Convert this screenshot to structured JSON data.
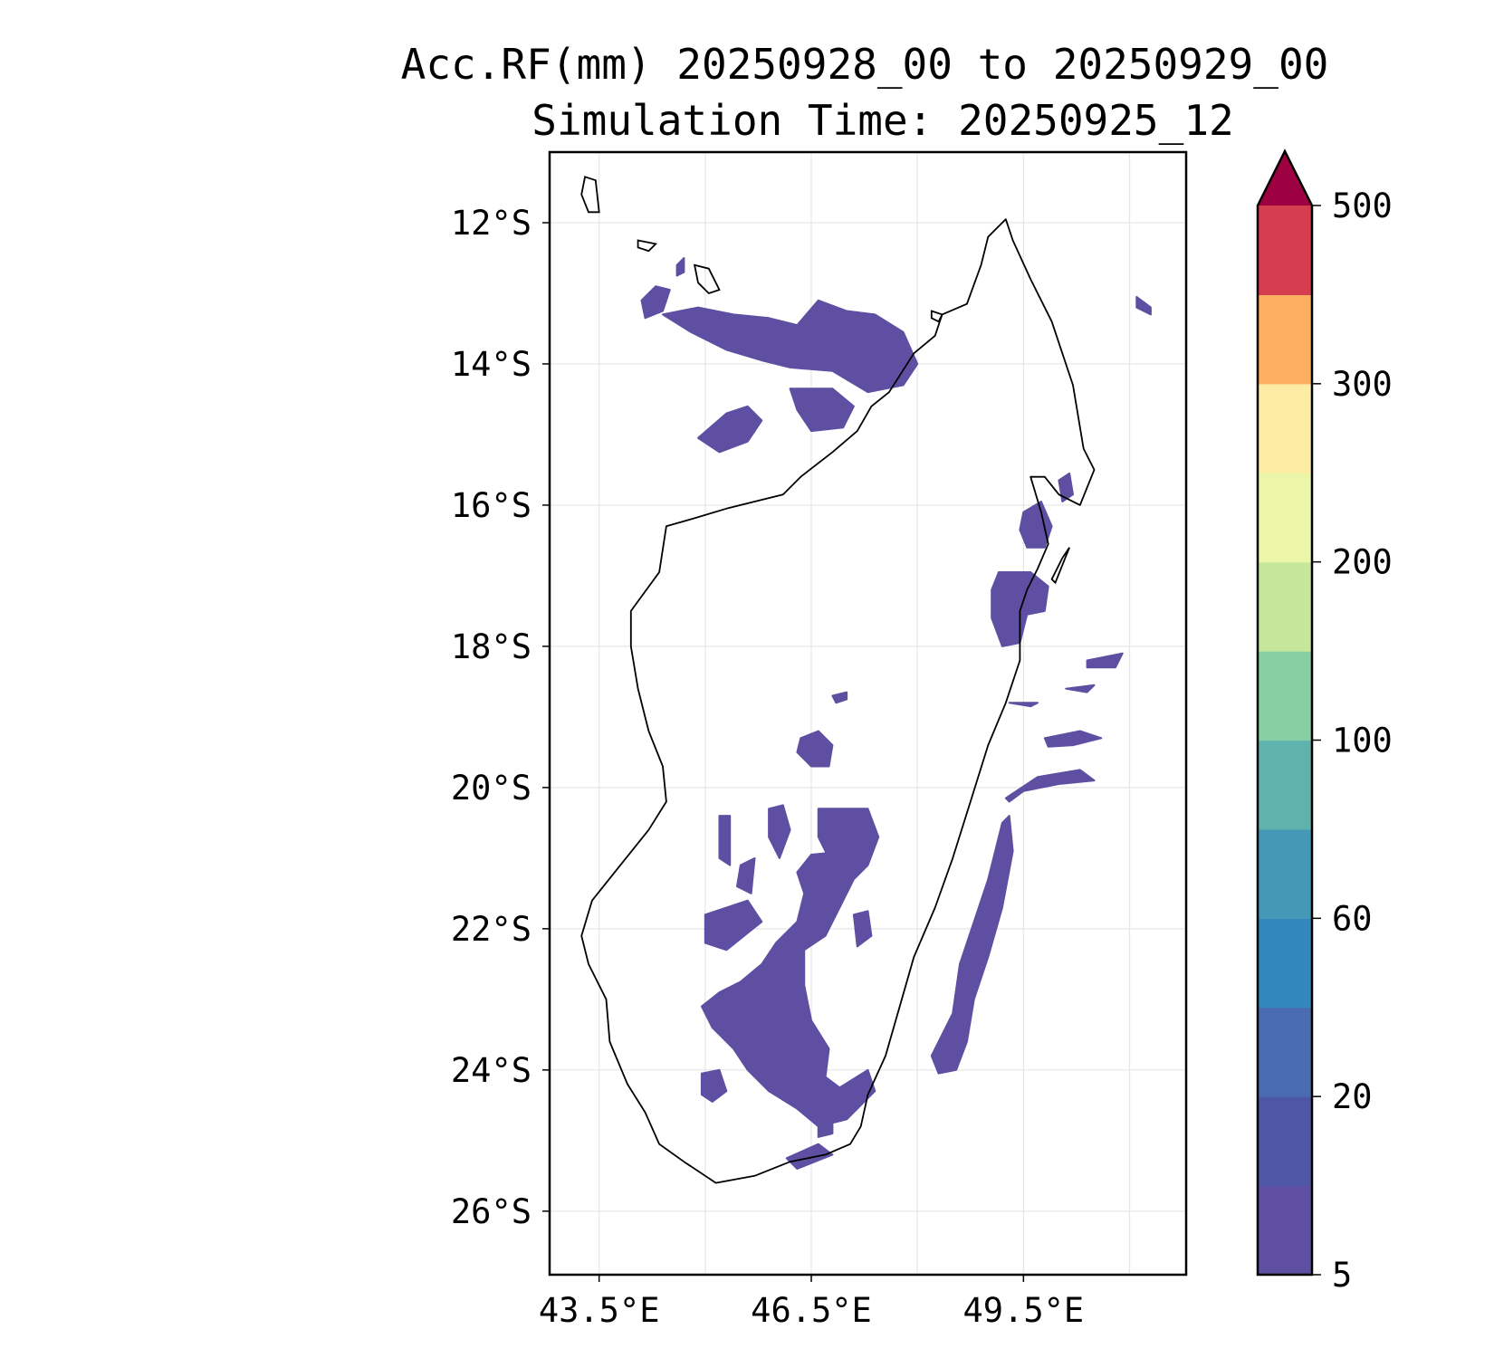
{
  "title": {
    "line1": "Acc.RF(mm) 20250928_00 to 20250929_00",
    "line2": "Simulation Time: 20250925_12"
  },
  "map": {
    "lon_range": [
      42.8,
      51.8
    ],
    "lat_range": [
      -26.9,
      -11.0
    ],
    "x_ticks": [
      {
        "value": 43.5,
        "label": "43.5°E"
      },
      {
        "value": 46.5,
        "label": "46.5°E"
      },
      {
        "value": 49.5,
        "label": "49.5°E"
      }
    ],
    "y_ticks": [
      {
        "value": -12,
        "label": "12°S"
      },
      {
        "value": -14,
        "label": "14°S"
      },
      {
        "value": -16,
        "label": "16°S"
      },
      {
        "value": -18,
        "label": "18°S"
      },
      {
        "value": -20,
        "label": "20°S"
      },
      {
        "value": -22,
        "label": "22°S"
      },
      {
        "value": -24,
        "label": "24°S"
      },
      {
        "value": -26,
        "label": "26°S"
      }
    ],
    "grid_lons": [
      43.5,
      45,
      46.5,
      48,
      49.5,
      51
    ],
    "grid_lats": [
      -12,
      -14,
      -16,
      -18,
      -20,
      -22,
      -24,
      -26
    ],
    "grid": true,
    "rain_fill_color": "#5e4fa2"
  },
  "colorbar": {
    "levels": [
      5,
      10,
      20,
      40,
      60,
      80,
      100,
      150,
      200,
      250,
      300,
      400,
      500
    ],
    "colors": [
      "#5e4fa2",
      "#4f56a6",
      "#4a6bb0",
      "#3288bd",
      "#4598b6",
      "#5fb3ac",
      "#87cfa4",
      "#c6e69c",
      "#ecf6a8",
      "#fdeda4",
      "#fdae61",
      "#d53e4f"
    ],
    "extend_color": "#9e0142",
    "tick_labels": [
      {
        "level_index": 0,
        "label": "5"
      },
      {
        "level_index": 2,
        "label": "20"
      },
      {
        "level_index": 4,
        "label": "60"
      },
      {
        "level_index": 6,
        "label": "100"
      },
      {
        "level_index": 8,
        "label": "200"
      },
      {
        "level_index": 10,
        "label": "300"
      },
      {
        "level_index": 12,
        "label": "500"
      }
    ]
  }
}
